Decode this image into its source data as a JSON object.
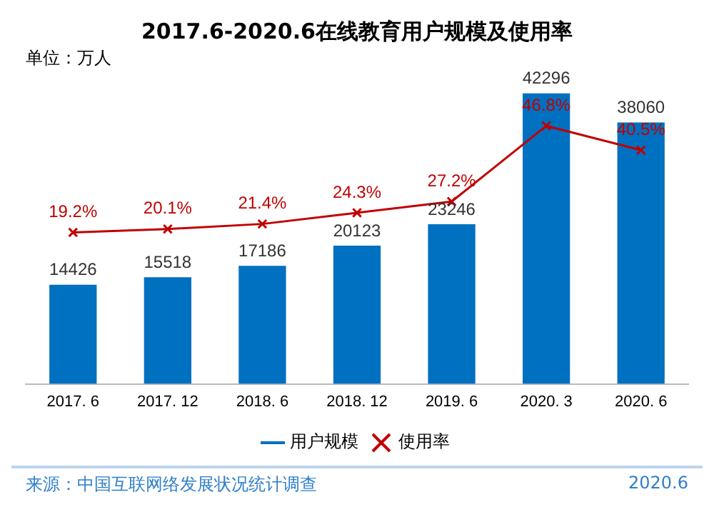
{
  "chart_data": {
    "type": "bar",
    "title": "2017.6-2020.6在线教育用户规模及使用率",
    "subtitle": "单位：万人",
    "categories": [
      "2017. 6",
      "2017. 12",
      "2018. 6",
      "2018. 12",
      "2019. 6",
      "2020. 3",
      "2020. 6"
    ],
    "series": [
      {
        "name": "用户规模",
        "type": "bar",
        "color": "#0070c0",
        "values": [
          14426,
          15518,
          17186,
          20123,
          23246,
          42296,
          38060
        ],
        "value_labels": [
          "14426",
          "15518",
          "17186",
          "20123",
          "23246",
          "42296",
          "38060"
        ]
      },
      {
        "name": "使用率",
        "type": "line",
        "axis": "y2",
        "color": "#c00000",
        "marker": "cross",
        "values": [
          19.2,
          20.1,
          21.4,
          24.3,
          27.2,
          46.8,
          40.5
        ],
        "value_labels": [
          "19.2%",
          "20.1%",
          "21.4%",
          "24.3%",
          "27.2%",
          "46.8%",
          "40.5%"
        ]
      }
    ],
    "tick_labels": "x",
    "grid": false,
    "legend": "bottom",
    "annotations": [
      "来源：中国互联网络发展状况统计调查",
      "2020.6"
    ]
  }
}
